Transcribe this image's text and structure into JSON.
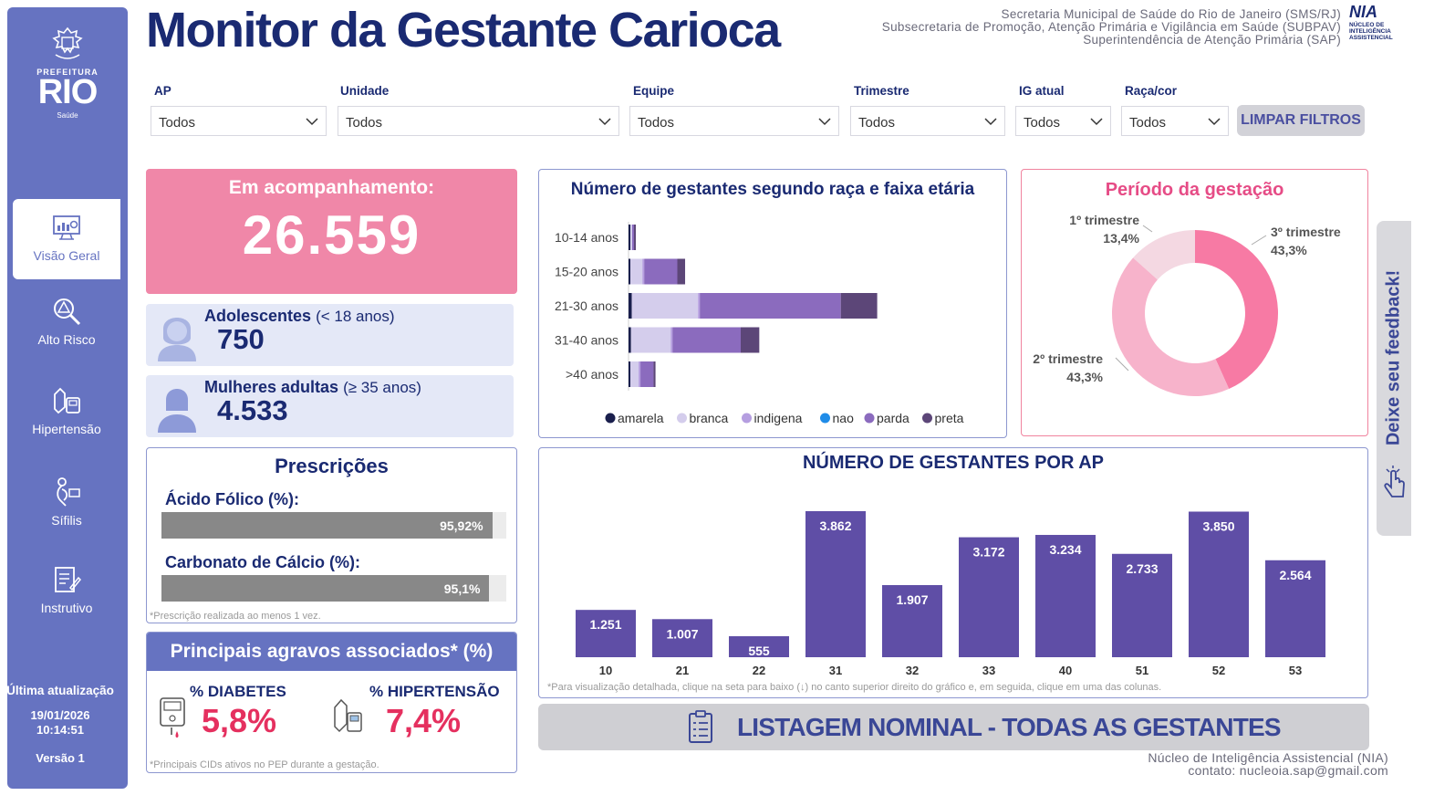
{
  "header": {
    "title": "Monitor da Gestante Carioca",
    "org_lines": [
      "Secretaria Municipal de Saúde do Rio de Janeiro (SMS/RJ)",
      "Subsecretaria de Promoção, Atenção Primária e Vigilância em Saúde (SUBPAV)",
      "Superintendência de Atenção Primária (SAP)"
    ],
    "nia_logo": {
      "name": "NIA",
      "subtitle": "NÚCLEO DE INTELIGÊNCIA ASSISTENCIAL"
    }
  },
  "sidebar": {
    "logo": {
      "prefeitura": "PREFEITURA",
      "rio": "RIO",
      "saude": "Saúde"
    },
    "items": [
      {
        "label": "Visão Geral",
        "icon": "dashboard-icon",
        "active": true
      },
      {
        "label": "Alto Risco",
        "icon": "magnifier-alert-icon",
        "active": false
      },
      {
        "label": "Hipertensão",
        "icon": "blood-pressure-icon",
        "active": false
      },
      {
        "label": "Sífilis",
        "icon": "syphilis-icon",
        "active": false
      },
      {
        "label": "Instrutivo",
        "icon": "document-edit-icon",
        "active": false
      }
    ],
    "update_label": "Última atualização",
    "update_date": "19/01/2026",
    "update_time": "10:14:51",
    "version": "Versão 1"
  },
  "filters": [
    {
      "label": "AP",
      "value": "Todos"
    },
    {
      "label": "Unidade",
      "value": "Todos"
    },
    {
      "label": "Equipe",
      "value": "Todos"
    },
    {
      "label": "Trimestre",
      "value": "Todos"
    },
    {
      "label": "IG atual",
      "value": "Todos"
    },
    {
      "label": "Raça/cor",
      "value": "Todos"
    }
  ],
  "clear_filters_label": "LIMPAR FILTROS",
  "kpis": {
    "acompanhamento_label": "Em acompanhamento:",
    "acompanhamento_value": "26.559",
    "adolescentes_label": "Adolescentes",
    "adolescentes_sub": "(< 18 anos)",
    "adolescentes_value": "750",
    "adultas_label": "Mulheres adultas",
    "adultas_sub": "(≥ 35 anos)",
    "adultas_value": "4.533"
  },
  "prescricoes": {
    "title": "Prescrições",
    "acido_label": "Ácido Fólico (%):",
    "acido_value": "95,92%",
    "acido_pct": 95.92,
    "calcio_label": "Carbonato de Cálcio (%):",
    "calcio_value": "95,1%",
    "calcio_pct": 95.1,
    "note": "*Prescrição realizada ao menos 1 vez."
  },
  "agravos": {
    "title": "Principais agravos associados* (%)",
    "diabetes_label": "% DIABETES",
    "diabetes_value": "5,8%",
    "hipertensao_label": "% HIPERTENSÃO",
    "hipertensao_value": "7,4%",
    "note": "*Principais CIDs ativos no PEP durante a gestação."
  },
  "listing_label": "LISTAGEM NOMINAL - TODAS AS GESTANTES",
  "feedback_label": "Deixe seu feedback!",
  "footer": {
    "line1": "Núcleo de Inteligência Assistencial (NIA)",
    "line2": "contato: nucleoia.sap@gmail.com"
  },
  "chart_data": [
    {
      "type": "bar",
      "orientation": "horizontal-stacked",
      "title": "Número de gestantes segundo raça e faixa etária",
      "categories": [
        "10-14 anos",
        "15-20 anos",
        "21-30 anos",
        "31-40 anos",
        ">40 anos"
      ],
      "series": [
        {
          "name": "amarela",
          "color": "#1a1f4d",
          "values": [
            20,
            60,
            130,
            100,
            30
          ]
        },
        {
          "name": "branca",
          "color": "#d4cdec",
          "values": [
            30,
            480,
            2640,
            1580,
            330
          ]
        },
        {
          "name": "indigena",
          "color": "#b59ee0",
          "values": [
            0,
            10,
            20,
            15,
            5
          ]
        },
        {
          "name": "nao",
          "color": "#1f8ce8",
          "values": [
            0,
            0,
            0,
            0,
            0
          ]
        },
        {
          "name": "parda",
          "color": "#8b6bbe",
          "values": [
            30,
            1320,
            5620,
            2720,
            520
          ]
        },
        {
          "name": "preta",
          "color": "#5c4678",
          "values": [
            10,
            310,
            1450,
            740,
            80
          ]
        }
      ],
      "legend_position": "bottom"
    },
    {
      "type": "pie",
      "donut": true,
      "title": "Período da gestação",
      "slices": [
        {
          "label": "3º trimestre",
          "value": 43.3,
          "text": "43,3%",
          "color": "#f77aa4"
        },
        {
          "label": "2º trimestre",
          "value": 43.3,
          "text": "43,3%",
          "color": "#f7b3cb"
        },
        {
          "label": "1º trimestre",
          "value": 13.4,
          "text": "13,4%",
          "color": "#f4d8e2"
        }
      ]
    },
    {
      "type": "bar",
      "title": "NÚMERO DE GESTANTES POR AP",
      "categories": [
        "10",
        "21",
        "22",
        "31",
        "32",
        "33",
        "40",
        "51",
        "52",
        "53"
      ],
      "values": [
        1251,
        1007,
        555,
        3862,
        1907,
        3172,
        3234,
        2733,
        3850,
        2564
      ],
      "labels": [
        "1.251",
        "1.007",
        "555",
        "3.862",
        "1.907",
        "3.172",
        "3.234",
        "2.733",
        "3.850",
        "2.564"
      ],
      "ylim": [
        0,
        4100
      ],
      "color": "#5f4ea6",
      "note": "*Para visualização detalhada, clique na seta para baixo (↓) no canto superior direito do gráfico e, em seguida, clique em uma das colunas."
    }
  ]
}
